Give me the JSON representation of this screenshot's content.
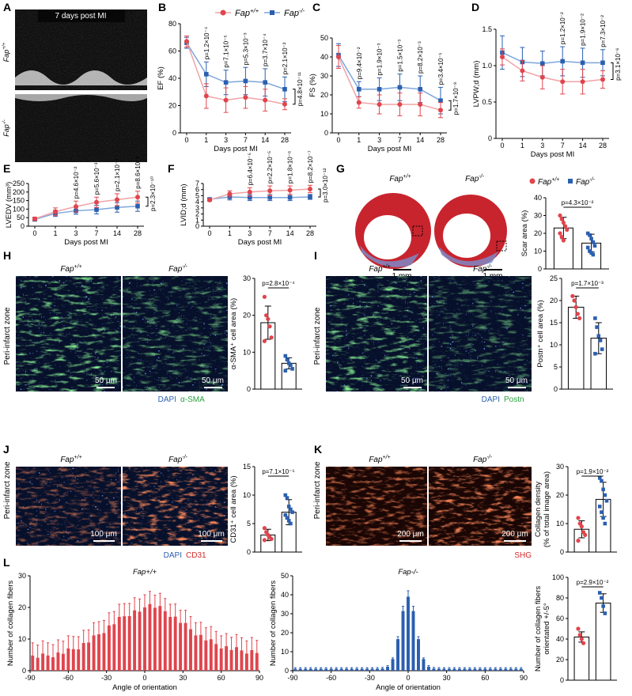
{
  "panels": {
    "A": "A",
    "B": "B",
    "C": "C",
    "D": "D",
    "E": "E",
    "F": "F",
    "G": "G",
    "H": "H",
    "I": "I",
    "J": "J",
    "K": "K",
    "L": "L"
  },
  "genotypes": {
    "wt": "Fap+/+",
    "ko": "Fap-/-"
  },
  "colors": {
    "wt": "#e0454d",
    "ko": "#2b5fb0",
    "wt_line": "#f0a3a6",
    "ko_line": "#7da6dc"
  },
  "echo": {
    "title": "7 days post MI"
  },
  "common": {
    "xlabel": "Days post MI",
    "days": [
      "0",
      "1",
      "3",
      "7",
      "14",
      "28"
    ]
  },
  "time_charts": [
    {
      "id": "B",
      "ylabel": "EF (%)",
      "ylim": [
        0,
        80
      ],
      "yticks": [
        0,
        20,
        40,
        60,
        80
      ],
      "wt": [
        67,
        27,
        24,
        26,
        24,
        21
      ],
      "wt_err": [
        4,
        9,
        9,
        8,
        8,
        4
      ],
      "ko": [
        66,
        43,
        37,
        38,
        37,
        32
      ],
      "ko_err": [
        4,
        9,
        9,
        10,
        10,
        9
      ],
      "pvals": [
        "p=1.2×10⁻⁴",
        "p=7.1×10⁻⁵",
        "p=5.3×10⁻³",
        "p=3.7×10⁻⁴",
        "p=2.1×10⁻²"
      ],
      "bracket_p": "p=4.8×10⁻¹¹"
    },
    {
      "id": "C",
      "ylabel": "FS (%)",
      "ylim": [
        0,
        50
      ],
      "yticks": [
        0,
        10,
        20,
        30,
        40,
        50
      ],
      "wt": [
        40,
        16,
        15,
        15,
        15,
        12
      ],
      "wt_err": [
        6,
        3,
        5,
        6,
        6,
        4
      ],
      "ko": [
        41,
        23,
        23,
        24,
        23,
        17
      ],
      "ko_err": [
        6,
        4,
        6,
        7,
        7,
        7
      ],
      "pvals": [
        "p=9.4×10⁻²",
        "p=1.9×10⁻³",
        "p=1.5×10⁻³",
        "p=8.2×10⁻³",
        "p=3.4×10⁻¹"
      ],
      "bracket_p": "p=1.7×10⁻⁸"
    },
    {
      "id": "D",
      "ylabel": "LVPW;d (mm)",
      "ylim": [
        0,
        1.5
      ],
      "yticks": [
        0,
        0.5,
        1.0,
        1.5
      ],
      "wt": [
        1.12,
        0.93,
        0.84,
        0.78,
        0.78,
        0.81
      ],
      "wt_err": [
        0.11,
        0.14,
        0.16,
        0.17,
        0.17,
        0.12
      ],
      "ko": [
        1.18,
        1.05,
        1.03,
        1.06,
        1.04,
        1.04
      ],
      "ko_err": [
        0.23,
        0.2,
        0.17,
        0.2,
        0.2,
        0.18
      ],
      "pvals": [
        "p=1.2×10⁻²",
        "p=1.9×10⁻²",
        "p=7.3×10⁻²"
      ],
      "bracket_p": "p=3.1×10⁻⁶"
    },
    {
      "id": "E",
      "ylabel": "LVEDV (mm³)",
      "ylim": [
        0,
        250
      ],
      "yticks": [
        0,
        50,
        100,
        150,
        200,
        250
      ],
      "wt": [
        43,
        85,
        115,
        140,
        155,
        170
      ],
      "wt_err": [
        10,
        22,
        32,
        30,
        35,
        35
      ],
      "ko": [
        40,
        75,
        90,
        97,
        110,
        117
      ],
      "ko_err": [
        10,
        18,
        20,
        25,
        28,
        30
      ],
      "pvals": [
        "p=4.6×10⁻²",
        "p=5.6×10⁻³",
        "p=2.1×10⁻⁴",
        "p=8.6×10⁻⁵"
      ],
      "bracket_p": "p=2.3×10⁻¹⁰"
    },
    {
      "id": "F",
      "ylabel": "LVID;d (mm)",
      "ylim": [
        0,
        7
      ],
      "yticks": [
        0,
        1,
        2,
        3,
        4,
        5,
        6,
        7
      ],
      "wt": [
        4.3,
        5.3,
        5.6,
        5.8,
        5.9,
        6.1
      ],
      "wt_err": [
        0.2,
        0.5,
        0.7,
        0.8,
        0.7,
        0.6
      ],
      "ko": [
        4.4,
        4.8,
        4.7,
        4.7,
        4.7,
        4.8
      ],
      "ko_err": [
        0.2,
        0.5,
        0.5,
        0.5,
        0.5,
        0.4
      ],
      "pvals": [
        "p=6.4×10⁻⁵",
        "p=2.2×10⁻⁵",
        "p=1.8×10⁻⁶",
        "p=8.2×10⁻⁷"
      ],
      "bracket_p": "p=3.0×10⁻¹²"
    }
  ],
  "bar_charts": [
    {
      "id": "G",
      "ylabel": [
        "Scar area (%)"
      ],
      "ylim": [
        0,
        40
      ],
      "yticks": [
        0,
        10,
        20,
        30,
        40
      ],
      "means": [
        23,
        14.5
      ],
      "errs": [
        6,
        5
      ],
      "p": "p=4.3×10⁻²",
      "wt_pts": [
        30,
        28,
        26,
        24,
        22,
        20,
        18,
        16
      ],
      "ko_pts": [
        20,
        19,
        17,
        15,
        13,
        12,
        10,
        9,
        8
      ]
    },
    {
      "id": "H",
      "ylabel": [
        "α-SMA⁺ cell area (%)"
      ],
      "ylim": [
        0,
        30
      ],
      "yticks": [
        0,
        10,
        20,
        30
      ],
      "means": [
        18,
        7
      ],
      "errs": [
        4.5,
        1.5
      ],
      "p": "p=2.8×10⁻⁴",
      "wt_pts": [
        25,
        20,
        19,
        17,
        14,
        13
      ],
      "ko_pts": [
        9,
        8,
        7,
        6.5,
        5.5,
        5
      ]
    },
    {
      "id": "I",
      "ylabel": [
        "Postn⁺ cell area (%)"
      ],
      "ylim": [
        0,
        25
      ],
      "yticks": [
        0,
        5,
        10,
        15,
        20,
        25
      ],
      "means": [
        18.5,
        11.5
      ],
      "errs": [
        2.5,
        3.5
      ],
      "p": "p=1.7×10⁻³",
      "wt_pts": [
        21,
        20,
        18.5,
        17,
        16
      ],
      "ko_pts": [
        16,
        14,
        12,
        11,
        9,
        8
      ]
    },
    {
      "id": "J",
      "ylabel": [
        "CD31⁺ cell area (%)"
      ],
      "ylim": [
        0,
        15
      ],
      "yticks": [
        0,
        5,
        10,
        15
      ],
      "means": [
        3,
        7
      ],
      "errs": [
        1,
        2.2
      ],
      "p": "p=7.1×10⁻⁵",
      "wt_pts": [
        4.2,
        3.5,
        3,
        2.6,
        2.3,
        2.1
      ],
      "ko_pts": [
        10,
        9.5,
        8,
        7.5,
        7,
        6.5,
        6,
        5.5,
        5
      ]
    },
    {
      "id": "K",
      "ylabel": [
        "Collagen density",
        "(% of total image area)"
      ],
      "ylim": [
        0,
        30
      ],
      "yticks": [
        0,
        10,
        20,
        30
      ],
      "means": [
        8,
        18.5
      ],
      "errs": [
        3,
        6
      ],
      "p": "p=1.9×10⁻²",
      "wt_pts": [
        12,
        10,
        9,
        7,
        6,
        4
      ],
      "ko_pts": [
        26,
        25,
        22,
        20,
        18,
        16,
        14,
        12,
        10
      ]
    },
    {
      "id": "L3",
      "ylabel": [
        "Number of collagen fibers",
        "orientated +/-5°"
      ],
      "ylim": [
        0,
        100
      ],
      "yticks": [
        0,
        20,
        40,
        60,
        80,
        100
      ],
      "means": [
        42,
        75
      ],
      "errs": [
        5,
        9
      ],
      "p": "p=2.9×10⁻²",
      "wt_pts": [
        50,
        44,
        40,
        36
      ],
      "ko_pts": [
        85,
        80,
        72,
        65
      ]
    }
  ],
  "images": {
    "H": {
      "zone": "Peri-infarct zone",
      "scale": "50 μm",
      "stain1": "DAPI",
      "stain2": "α-SMA"
    },
    "I": {
      "zone": "Peri-infarct zone",
      "scale": "50 μm",
      "stain1": "DAPI",
      "stain2": "Postn"
    },
    "J": {
      "zone": "Peri-infarct zone",
      "scale": "100 μm",
      "stain1": "DAPI",
      "stain2": "CD31"
    },
    "K": {
      "zone": "Peri-infarct zone",
      "scale": "200 μm",
      "stain2": "SHG"
    },
    "G": {
      "scale": "1 mm"
    }
  },
  "histograms": {
    "xlabel": "Angle of orientation",
    "ylabel": "Number of collagen fibers",
    "xticks": [
      "-90",
      "-60",
      "-30",
      "0",
      "30",
      "60",
      "90"
    ],
    "wt": {
      "title": "Fap+/+",
      "yticks": [
        0,
        10,
        20,
        30
      ],
      "ylim": [
        0,
        30
      ]
    },
    "ko": {
      "title": "Fap-/-",
      "yticks": [
        0,
        10,
        20,
        30,
        40,
        50
      ],
      "ylim": [
        0,
        50
      ]
    }
  }
}
